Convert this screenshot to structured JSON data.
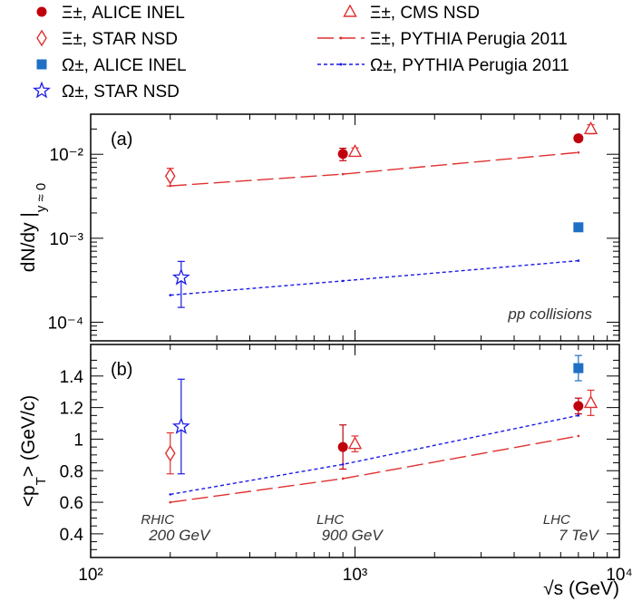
{
  "chart_data": {
    "type": "scatter",
    "legend": {
      "entries": [
        {
          "label": "Ξ±, ALICE INEL",
          "marker": "filled-circle",
          "color": "#c0000b"
        },
        {
          "label": "Ξ±, CMS NSD",
          "marker": "open-triangle",
          "color": "#e03030"
        },
        {
          "label": "Ξ±, STAR NSD",
          "marker": "open-diamond",
          "color": "#e03030"
        },
        {
          "label": "Ξ±, PYTHIA Perugia 2011",
          "marker": "long-dash",
          "color": "#e03030"
        },
        {
          "label": "Ω±, ALICE INEL",
          "marker": "filled-square",
          "color": "#1f6fc5"
        },
        {
          "label": "Ω±, PYTHIA Perugia 2011",
          "marker": "short-dash",
          "color": "#1a1ae6"
        },
        {
          "label": "Ω±, STAR NSD",
          "marker": "open-star",
          "color": "#1a1ae6"
        }
      ]
    },
    "xlabel": "√s (GeV)",
    "xscale": "log",
    "xlim": [
      100,
      10000
    ],
    "xticks": [
      {
        "value": 100,
        "label": "10²"
      },
      {
        "value": 1000,
        "label": "10³"
      },
      {
        "value": 10000,
        "label": "10⁴"
      }
    ],
    "annotations": {
      "energies": [
        {
          "x": 200,
          "line1": "RHIC",
          "line2": "200 GeV"
        },
        {
          "x": 900,
          "line1": "LHC",
          "line2": "900 GeV"
        },
        {
          "x": 7000,
          "line1": "LHC",
          "line2": "7 TeV"
        }
      ]
    },
    "panels": [
      {
        "label": "(a)",
        "ylabel": "dN/dy |",
        "ylabel_sub": "y ≈ 0",
        "yscale": "log",
        "ylim": [
          6e-05,
          0.03
        ],
        "yticks": [
          {
            "value": 0.01,
            "label": "10⁻²"
          },
          {
            "value": 0.001,
            "label": "10⁻³"
          },
          {
            "value": 0.0001,
            "label": "10⁻⁴"
          }
        ],
        "note": "pp collisions",
        "series": [
          {
            "name": "Ξ±, ALICE INEL",
            "marker": "filled-circle",
            "color": "#c0000b",
            "points": [
              {
                "x": 900,
                "y": 0.0101,
                "err": 0.0017
              },
              {
                "x": 7000,
                "y": 0.0155,
                "err": 0.0012
              }
            ]
          },
          {
            "name": "Ξ±, CMS NSD",
            "marker": "open-triangle",
            "color": "#e03030",
            "points": [
              {
                "x": 1000,
                "y": 0.0107,
                "err": 0.0012
              },
              {
                "x": 7800,
                "y": 0.02,
                "err": 0.0025
              }
            ]
          },
          {
            "name": "Ξ±, STAR NSD",
            "marker": "open-diamond",
            "color": "#e03030",
            "points": [
              {
                "x": 200,
                "y": 0.0055,
                "err": 0.0013
              }
            ]
          },
          {
            "name": "Ω±, ALICE INEL",
            "marker": "filled-square",
            "color": "#1f6fc5",
            "points": [
              {
                "x": 7000,
                "y": 0.00135,
                "err": 0.0001
              }
            ]
          },
          {
            "name": "Ω±, STAR NSD",
            "marker": "open-star",
            "color": "#1a1ae6",
            "points": [
              {
                "x": 220,
                "y": 0.00034,
                "errlo": 0.00019,
                "errhi": 0.00019
              }
            ]
          },
          {
            "name": "Ξ±, PYTHIA Perugia 2011",
            "line": "long-dash",
            "color": "#e03030",
            "x": [
              200,
              900,
              7000
            ],
            "y": [
              0.0042,
              0.0058,
              0.0105
            ]
          },
          {
            "name": "Ω±, PYTHIA Perugia 2011",
            "line": "short-dash",
            "color": "#1a1ae6",
            "x": [
              200,
              900,
              7000
            ],
            "y": [
              0.00021,
              0.00031,
              0.00054
            ]
          }
        ]
      },
      {
        "label": "(b)",
        "ylabel": "<p",
        "ylabel_sub": "T",
        "ylabel_tail": "> (GeV/c)",
        "yscale": "linear",
        "ylim": [
          0.25,
          1.6
        ],
        "yticks": [
          {
            "value": 0.4,
            "label": "0.4"
          },
          {
            "value": 0.6,
            "label": "0.6"
          },
          {
            "value": 0.8,
            "label": "0.8"
          },
          {
            "value": 1.0,
            "label": "1"
          },
          {
            "value": 1.2,
            "label": "1.2"
          },
          {
            "value": 1.4,
            "label": "1.4"
          }
        ],
        "series": [
          {
            "name": "Ξ±, ALICE INEL",
            "marker": "filled-circle",
            "color": "#c0000b",
            "points": [
              {
                "x": 900,
                "y": 0.95,
                "err": 0.14
              },
              {
                "x": 7000,
                "y": 1.21,
                "err": 0.05
              }
            ]
          },
          {
            "name": "Ξ±, CMS NSD",
            "marker": "open-triangle",
            "color": "#e03030",
            "points": [
              {
                "x": 1000,
                "y": 0.97,
                "err": 0.05
              },
              {
                "x": 7800,
                "y": 1.23,
                "err": 0.08
              }
            ]
          },
          {
            "name": "Ξ±, STAR NSD",
            "marker": "open-diamond",
            "color": "#e03030",
            "points": [
              {
                "x": 200,
                "y": 0.91,
                "err": 0.13
              }
            ]
          },
          {
            "name": "Ω±, ALICE INEL",
            "marker": "filled-square",
            "color": "#1f6fc5",
            "points": [
              {
                "x": 7000,
                "y": 1.45,
                "err": 0.08
              }
            ]
          },
          {
            "name": "Ω±, STAR NSD",
            "marker": "open-star",
            "color": "#1a1ae6",
            "points": [
              {
                "x": 220,
                "y": 1.08,
                "err": 0.3
              }
            ]
          },
          {
            "name": "Ξ±, PYTHIA Perugia 2011",
            "line": "long-dash",
            "color": "#e03030",
            "x": [
              200,
              900,
              7000
            ],
            "y": [
              0.6,
              0.75,
              1.02
            ]
          },
          {
            "name": "Ω±, PYTHIA Perugia 2011",
            "line": "short-dash",
            "color": "#1a1ae6",
            "x": [
              200,
              900,
              7000
            ],
            "y": [
              0.65,
              0.84,
              1.15
            ]
          }
        ]
      }
    ]
  }
}
